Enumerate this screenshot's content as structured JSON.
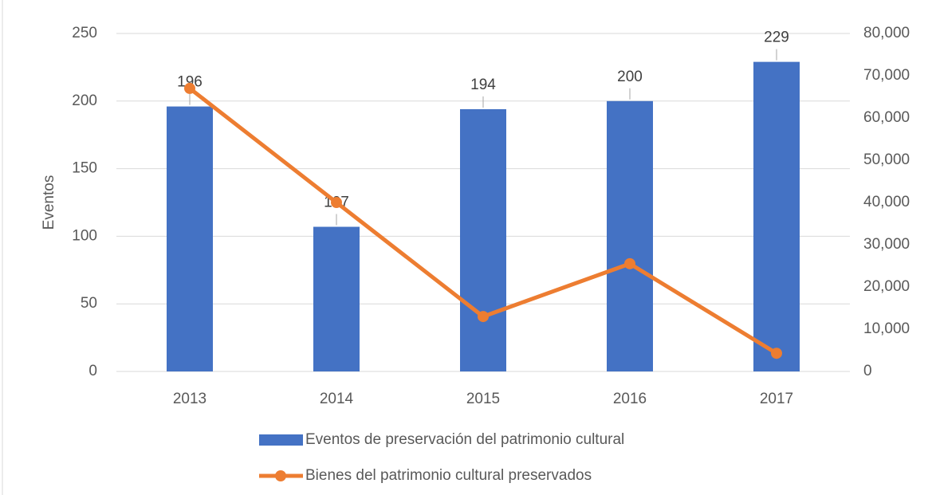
{
  "chart_data": {
    "type": "bar_line",
    "y_label": "Eventos",
    "categories": [
      "2013",
      "2014",
      "2015",
      "2016",
      "2017"
    ],
    "series": [
      {
        "name": "Eventos de preservación del patrimonio cultural",
        "color": "#4472c4",
        "type": "bar",
        "values": [
          196,
          107,
          194,
          200,
          229
        ]
      },
      {
        "name": "Bienes del patrimonio cultural preservados",
        "color": "#ed7d31",
        "type": "line",
        "axis": "y2",
        "values": [
          67000,
          40000,
          13000,
          25500,
          4300
        ]
      }
    ],
    "ylim": [
      0,
      250
    ],
    "yticks": [
      0,
      50,
      100,
      150,
      200,
      250
    ],
    "y2lim": [
      0,
      80000
    ],
    "y2ticks": [
      0,
      {
        "value": 10000,
        "label": "10,000"
      },
      {
        "value": 20000,
        "label": "20,000"
      },
      {
        "value": 30000,
        "label": "30,000"
      },
      {
        "value": 40000,
        "label": "40,000"
      },
      {
        "value": 50000,
        "label": "50,000"
      },
      {
        "value": 60000,
        "label": "60,000"
      },
      {
        "value": 70000,
        "label": "70,000"
      },
      {
        "value": 80000,
        "label": "80,000"
      }
    ],
    "grid": true
  }
}
